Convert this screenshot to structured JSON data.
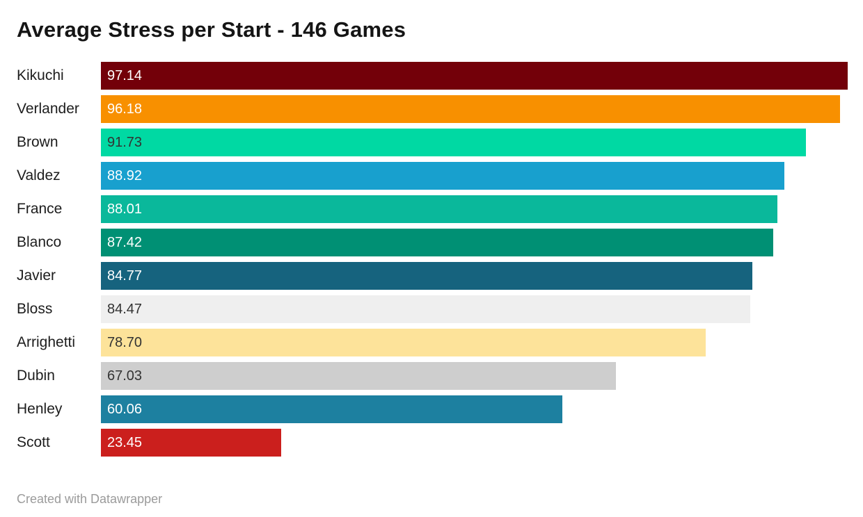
{
  "header": {
    "title": "Average Stress per Start - 146 Games"
  },
  "footer": {
    "attribution": "Created with Datawrapper"
  },
  "chart_data": {
    "type": "bar",
    "orientation": "horizontal",
    "title": "Average Stress per Start - 146 Games",
    "xlabel": "",
    "ylabel": "",
    "xlim": [
      0,
      97.14
    ],
    "grid": false,
    "legend": false,
    "value_label_position": "inside-start",
    "categories": [
      "Kikuchi",
      "Verlander",
      "Brown",
      "Valdez",
      "France",
      "Blanco",
      "Javier",
      "Bloss",
      "Arrighetti",
      "Dubin",
      "Henley",
      "Scott"
    ],
    "values": [
      97.14,
      96.18,
      91.73,
      88.92,
      88.01,
      87.42,
      84.77,
      84.47,
      78.7,
      67.03,
      60.06,
      23.45
    ],
    "value_display": [
      "97.14",
      "96.18",
      "91.73",
      "88.92",
      "88.01",
      "87.42",
      "84.77",
      "84.47",
      "78.70",
      "67.03",
      "60.06",
      "23.45"
    ],
    "bar_colors": [
      "#730009",
      "#f89000",
      "#00d9a3",
      "#18a0ce",
      "#0ab89b",
      "#009074",
      "#16637e",
      "#efefef",
      "#fde39a",
      "#cecece",
      "#1d80a0",
      "#cb1f1d"
    ],
    "value_text_colors": [
      "#ffffff",
      "#ffffff",
      "#333333",
      "#ffffff",
      "#ffffff",
      "#ffffff",
      "#ffffff",
      "#333333",
      "#333333",
      "#333333",
      "#ffffff",
      "#ffffff"
    ],
    "category_text_color": "#1d1d1d"
  }
}
